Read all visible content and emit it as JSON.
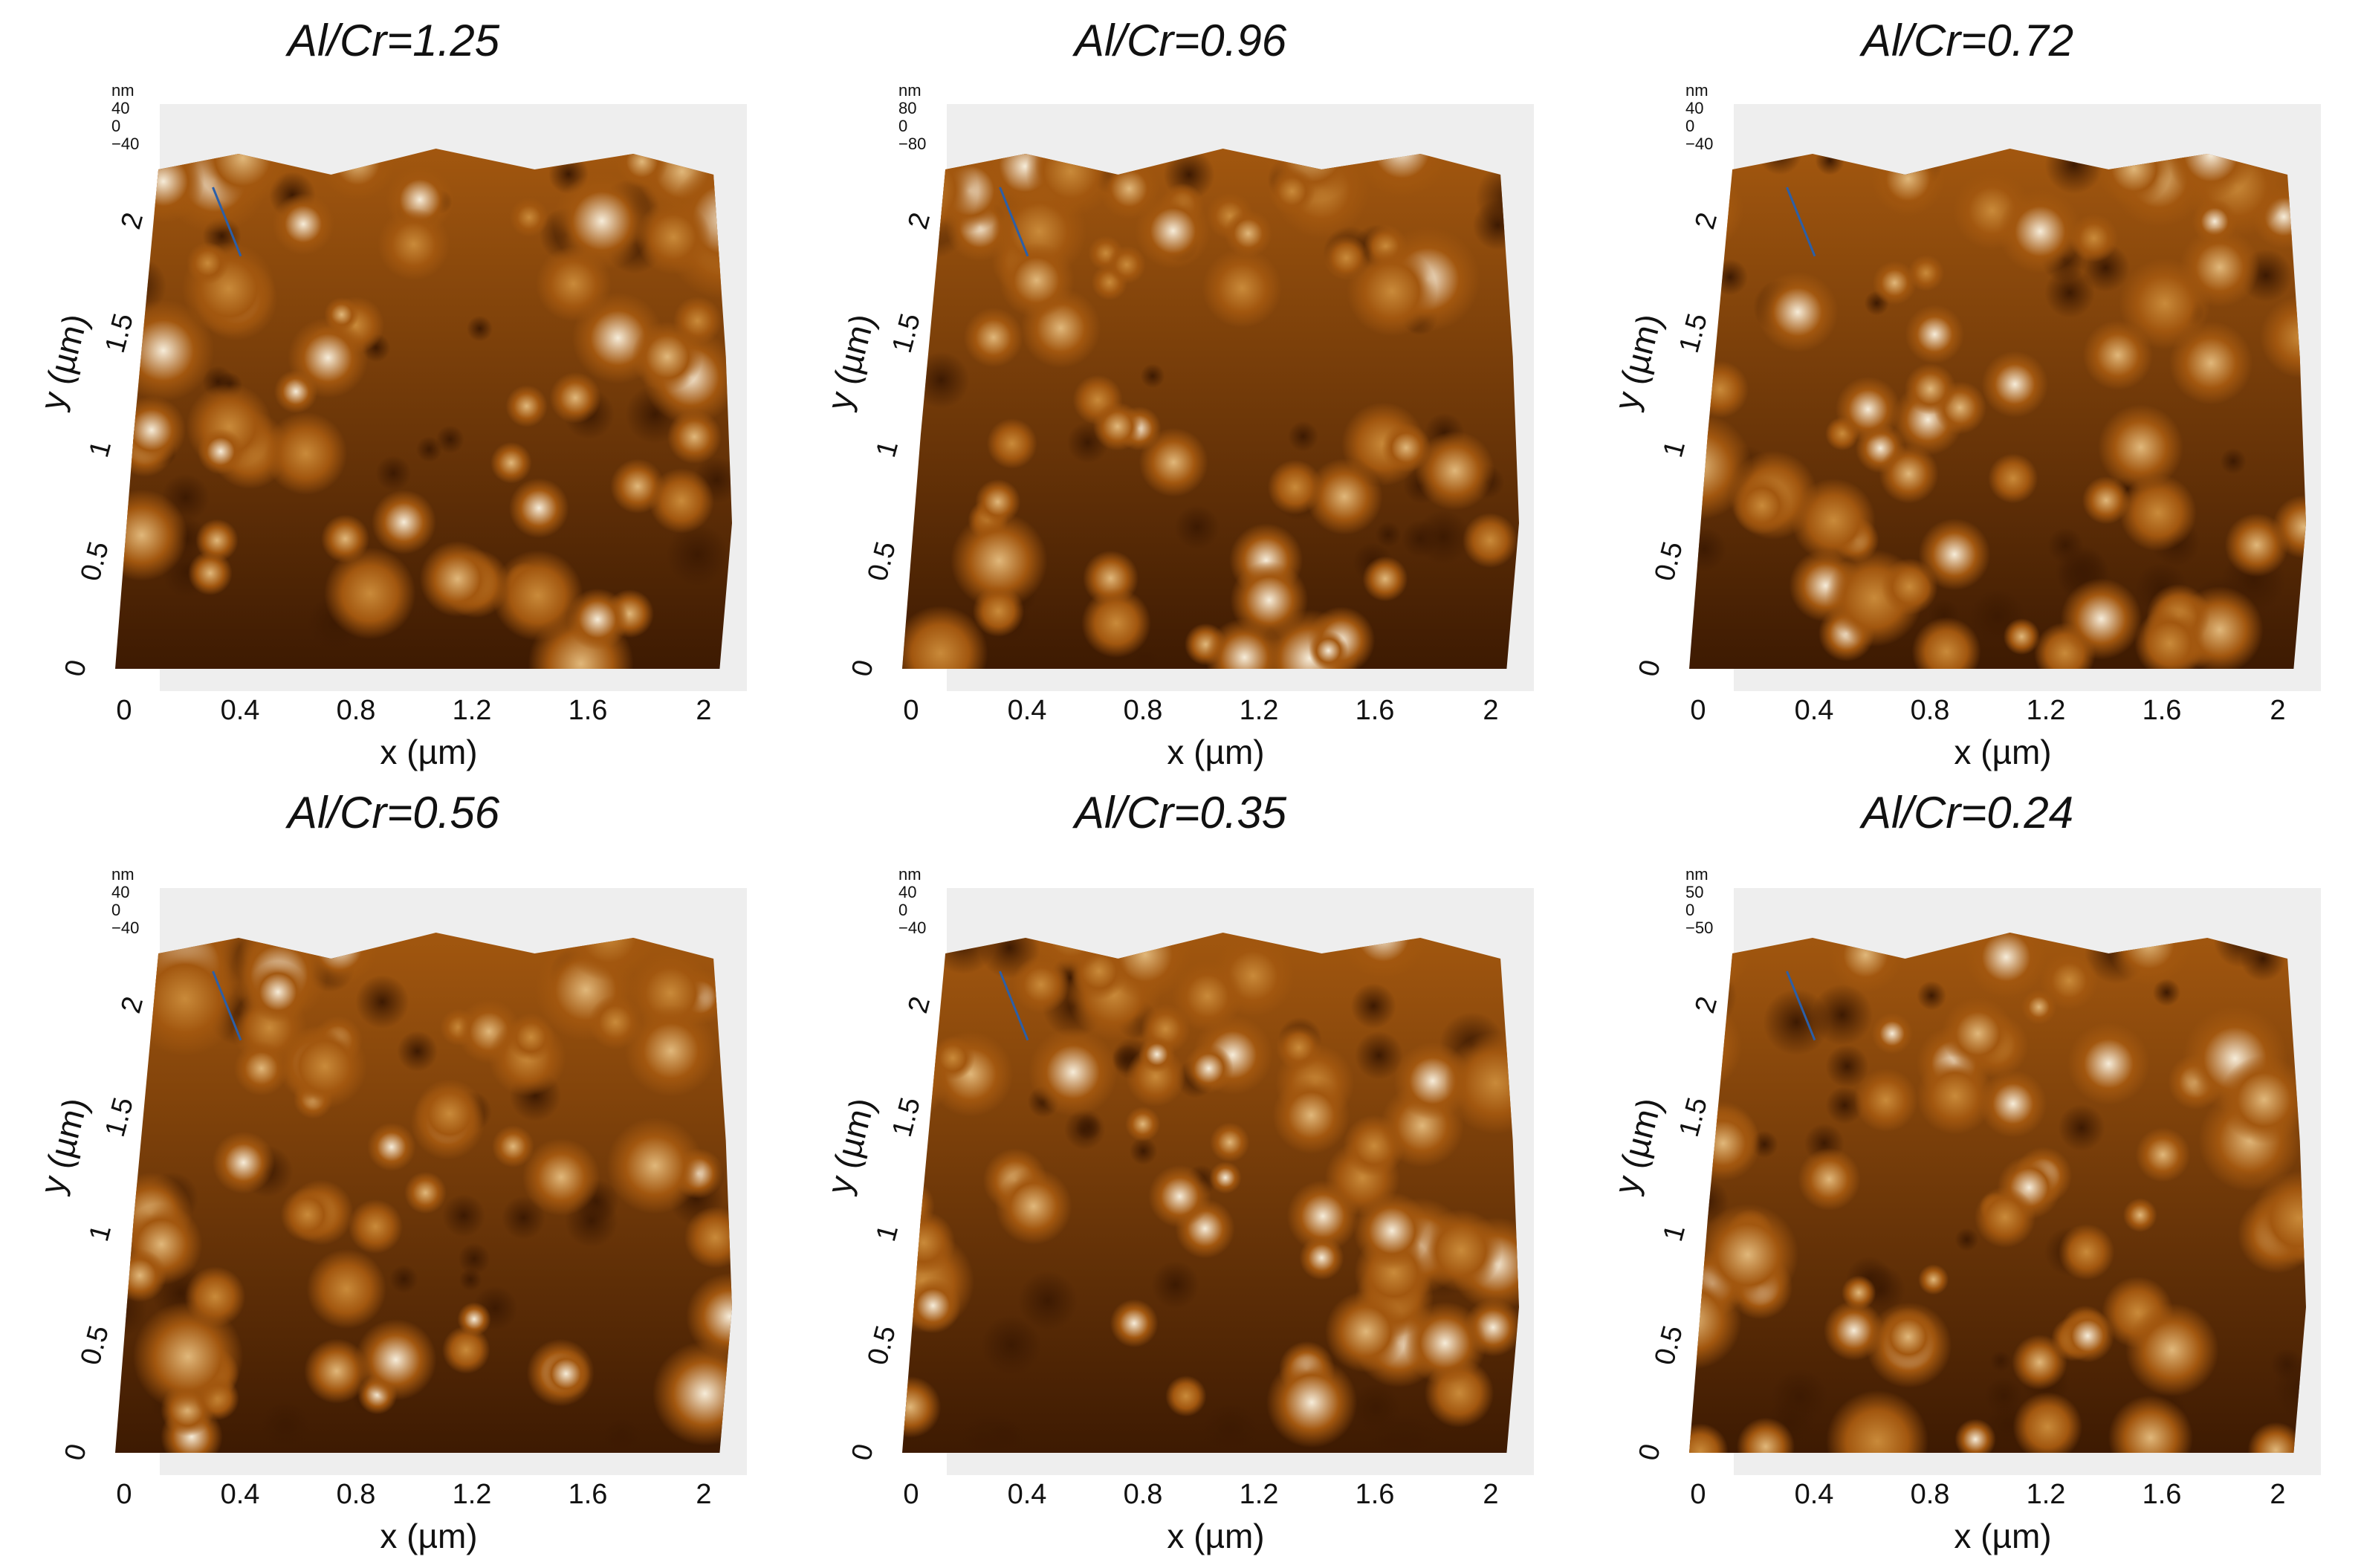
{
  "panels": [
    {
      "title": "Al/Cr=1.25",
      "z_unit": "nm",
      "z_ticks": [
        "40",
        "0",
        "−40"
      ],
      "x_ticks": [
        "0",
        "0.4",
        "0.8",
        "1.2",
        "1.6",
        "2"
      ],
      "y_ticks": [
        "0",
        "0.5",
        "1",
        "1.5",
        "2"
      ],
      "xlabel": "x (µm)",
      "ylabel": "y (µm)"
    },
    {
      "title": "Al/Cr=0.96",
      "z_unit": "nm",
      "z_ticks": [
        "80",
        "0",
        "−80"
      ],
      "x_ticks": [
        "0",
        "0.4",
        "0.8",
        "1.2",
        "1.6",
        "2"
      ],
      "y_ticks": [
        "0",
        "0.5",
        "1",
        "1.5",
        "2"
      ],
      "xlabel": "x (µm)",
      "ylabel": "y (µm)"
    },
    {
      "title": "Al/Cr=0.72",
      "z_unit": "nm",
      "z_ticks": [
        "40",
        "0",
        "−40"
      ],
      "x_ticks": [
        "0",
        "0.4",
        "0.8",
        "1.2",
        "1.6",
        "2"
      ],
      "y_ticks": [
        "0",
        "0.5",
        "1",
        "1.5",
        "2"
      ],
      "xlabel": "x (µm)",
      "ylabel": "y (µm)"
    },
    {
      "title": "Al/Cr=0.56",
      "z_unit": "nm",
      "z_ticks": [
        "40",
        "0",
        "−40"
      ],
      "x_ticks": [
        "0",
        "0.4",
        "0.8",
        "1.2",
        "1.6",
        "2"
      ],
      "y_ticks": [
        "0",
        "0.5",
        "1",
        "1.5",
        "2"
      ],
      "xlabel": "x (µm)",
      "ylabel": "y (µm)"
    },
    {
      "title": "Al/Cr=0.35",
      "z_unit": "nm",
      "z_ticks": [
        "40",
        "0",
        "−40"
      ],
      "x_ticks": [
        "0",
        "0.4",
        "0.8",
        "1.2",
        "1.6",
        "2"
      ],
      "y_ticks": [
        "0",
        "0.5",
        "1",
        "1.5",
        "2"
      ],
      "xlabel": "x (µm)",
      "ylabel": "y (µm)"
    },
    {
      "title": "Al/Cr=0.24",
      "z_unit": "nm",
      "z_ticks": [
        "50",
        "0",
        "−50"
      ],
      "x_ticks": [
        "0",
        "0.4",
        "0.8",
        "1.2",
        "1.6",
        "2"
      ],
      "y_ticks": [
        "0",
        "0.5",
        "1",
        "1.5",
        "2"
      ],
      "xlabel": "x (µm)",
      "ylabel": "y (µm)"
    }
  ],
  "colors": {
    "surface_dark": "#3d1a02",
    "surface_mid": "#a2570f",
    "surface_light": "#f6ecd9",
    "backwall": "#eeeeee",
    "z_axis": "#2b5fa8"
  }
}
